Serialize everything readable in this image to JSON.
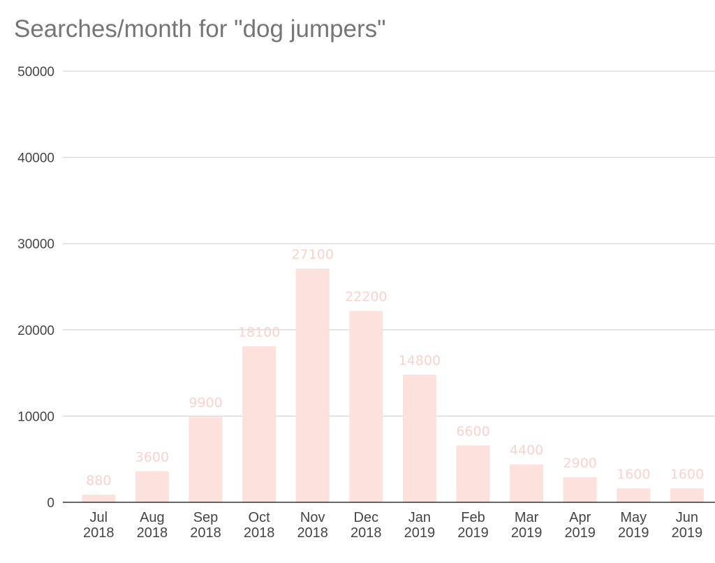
{
  "title": "Searches/month for \"dog jumpers\"",
  "colors": {
    "bar": "#fce1dc",
    "data_label": "#fad3cc",
    "grid": "#cccccc",
    "axis": "#333333",
    "title": "#757575",
    "tick_text": "#444444"
  },
  "chart_data": {
    "type": "bar",
    "title": "Searches/month for \"dog jumpers\"",
    "categories": [
      "Jul 2018",
      "Aug 2018",
      "Sep 2018",
      "Oct 2018",
      "Nov 2018",
      "Dec 2018",
      "Jan 2019",
      "Feb 2019",
      "Mar 2019",
      "Apr 2019",
      "May 2019",
      "Jun 2019"
    ],
    "category_lines": [
      [
        "Jul",
        "2018"
      ],
      [
        "Aug",
        "2018"
      ],
      [
        "Sep",
        "2018"
      ],
      [
        "Oct",
        "2018"
      ],
      [
        "Nov",
        "2018"
      ],
      [
        "Dec",
        "2018"
      ],
      [
        "Jan",
        "2019"
      ],
      [
        "Feb",
        "2019"
      ],
      [
        "Mar",
        "2019"
      ],
      [
        "Apr",
        "2019"
      ],
      [
        "May",
        "2019"
      ],
      [
        "Jun",
        "2019"
      ]
    ],
    "values": [
      880,
      3600,
      9900,
      18100,
      27100,
      22200,
      14800,
      6600,
      4400,
      2900,
      1600,
      1600
    ],
    "data_labels": [
      "880",
      "3600",
      "9900",
      "18100",
      "27100",
      "22200",
      "14800",
      "6600",
      "4400",
      "2900",
      "1600",
      "1600"
    ],
    "xlabel": "",
    "ylabel": "",
    "ylim": [
      0,
      50000
    ],
    "yticks": [
      0,
      10000,
      20000,
      30000,
      40000,
      50000
    ],
    "ytick_labels": [
      "0",
      "10000",
      "20000",
      "30000",
      "40000",
      "50000"
    ],
    "grid": true,
    "legend": "none"
  }
}
